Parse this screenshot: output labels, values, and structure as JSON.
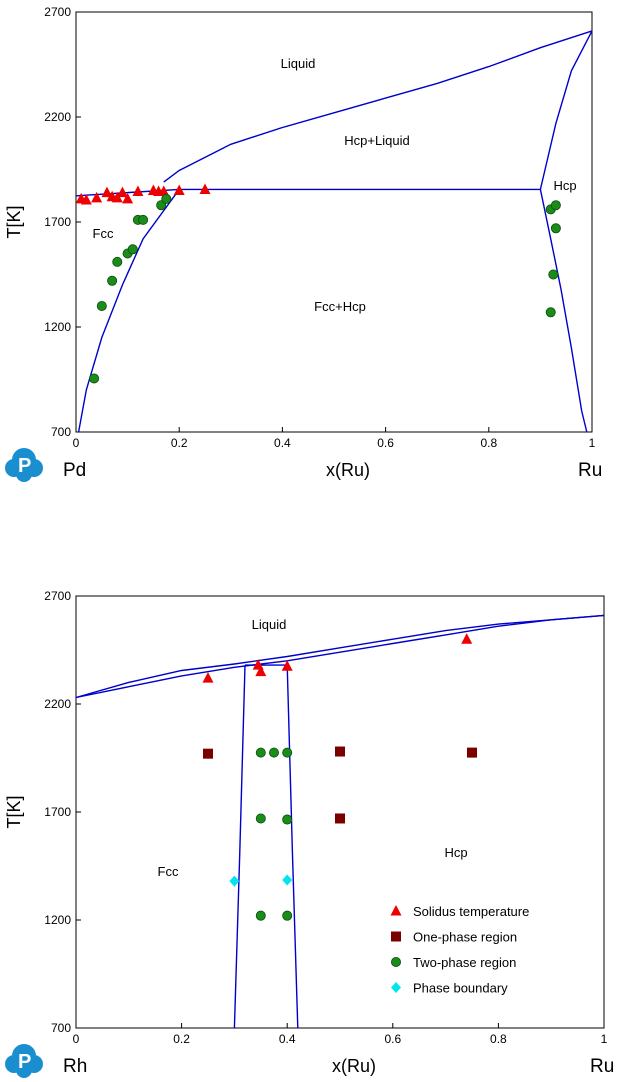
{
  "chart_data": [
    {
      "type": "scatter",
      "title": "",
      "xlabel": "x(Ru)",
      "ylabel": "T[K]",
      "xlim": [
        0,
        1
      ],
      "ylim": [
        700,
        2700
      ],
      "xticks": [
        "0",
        "0.2",
        "0.4",
        "0.6",
        "0.8",
        "1"
      ],
      "yticks": [
        "700",
        "1200",
        "1700",
        "2200",
        "2700"
      ],
      "left_element": "Pd",
      "right_element": "Ru",
      "region_labels": [
        "Liquid",
        "Hcp+Liquid",
        "Hcp",
        "Fcc",
        "Fcc+Hcp"
      ],
      "curves": [
        {
          "name": "liquidus",
          "color": "#0000cc",
          "points": [
            [
              0.17,
              1890
            ],
            [
              0.2,
              1945
            ],
            [
              0.3,
              2070
            ],
            [
              0.4,
              2150
            ],
            [
              0.5,
              2220
            ],
            [
              0.6,
              2290
            ],
            [
              0.7,
              2360
            ],
            [
              0.8,
              2440
            ],
            [
              0.9,
              2530
            ],
            [
              1.0,
              2610
            ]
          ]
        },
        {
          "name": "peritectic",
          "color": "#0000cc",
          "points": [
            [
              0,
              1825
            ],
            [
              0.2,
              1855
            ],
            [
              0.9,
              1855
            ]
          ]
        },
        {
          "name": "fcc-solvus",
          "color": "#0000cc",
          "points": [
            [
              0.005,
              700
            ],
            [
              0.02,
              900
            ],
            [
              0.05,
              1150
            ],
            [
              0.09,
              1400
            ],
            [
              0.13,
              1620
            ],
            [
              0.2,
              1855
            ]
          ]
        },
        {
          "name": "hcp-solidus",
          "color": "#0000cc",
          "points": [
            [
              0.9,
              1855
            ],
            [
              0.93,
              2170
            ],
            [
              0.96,
              2420
            ],
            [
              1.0,
              2610
            ]
          ]
        },
        {
          "name": "hcp-solvus",
          "color": "#0000cc",
          "points": [
            [
              0.9,
              1855
            ],
            [
              0.92,
              1620
            ],
            [
              0.94,
              1380
            ],
            [
              0.96,
              1100
            ],
            [
              0.98,
              800
            ],
            [
              0.99,
              700
            ]
          ]
        }
      ],
      "series": [
        {
          "name": "",
          "marker": "triangle",
          "color": "#ee0000",
          "x": [
            0.01,
            0.02,
            0.04,
            0.06,
            0.07,
            0.08,
            0.09,
            0.1,
            0.12,
            0.15,
            0.16,
            0.17,
            0.2,
            0.25
          ],
          "y": [
            1810,
            1805,
            1815,
            1840,
            1820,
            1815,
            1840,
            1810,
            1845,
            1850,
            1845,
            1845,
            1850,
            1855
          ]
        },
        {
          "name": "",
          "marker": "circle",
          "color": "#1a8c1a",
          "x": [
            0.035,
            0.05,
            0.07,
            0.08,
            0.1,
            0.11,
            0.12,
            0.13,
            0.165,
            0.175,
            0.92,
            0.93,
            0.925,
            0.93,
            0.92
          ],
          "y": [
            955,
            1300,
            1420,
            1510,
            1550,
            1570,
            1710,
            1710,
            1780,
            1810,
            1760,
            1670,
            1450,
            1780,
            1270
          ]
        }
      ]
    },
    {
      "type": "scatter",
      "title": "",
      "xlabel": "x(Ru)",
      "ylabel": "T[K]",
      "xlim": [
        0,
        1
      ],
      "ylim": [
        700,
        2700
      ],
      "xticks": [
        "0",
        "0.2",
        "0.4",
        "0.6",
        "0.8",
        "1"
      ],
      "yticks": [
        "700",
        "1200",
        "1700",
        "2200",
        "2700"
      ],
      "left_element": "Rh",
      "right_element": "Ru",
      "region_labels": [
        "Liquid",
        "Fcc",
        "Hcp"
      ],
      "curves": [
        {
          "name": "liquidus",
          "color": "#0000cc",
          "points": [
            [
              0,
              2230
            ],
            [
              0.1,
              2300
            ],
            [
              0.2,
              2355
            ],
            [
              0.3,
              2385
            ],
            [
              0.4,
              2420
            ],
            [
              0.5,
              2460
            ],
            [
              0.6,
              2500
            ],
            [
              0.7,
              2540
            ],
            [
              0.8,
              2570
            ],
            [
              0.9,
              2590
            ],
            [
              1.0,
              2610
            ]
          ]
        },
        {
          "name": "solidus",
          "color": "#0000cc",
          "points": [
            [
              0,
              2230
            ],
            [
              0.1,
              2280
            ],
            [
              0.2,
              2330
            ],
            [
              0.3,
              2370
            ],
            [
              0.4,
              2400
            ],
            [
              0.5,
              2440
            ],
            [
              0.6,
              2480
            ],
            [
              0.7,
              2520
            ],
            [
              0.8,
              2560
            ],
            [
              0.9,
              2590
            ],
            [
              1.0,
              2610
            ]
          ]
        },
        {
          "name": "peritectic",
          "color": "#0000cc",
          "points": [
            [
              0.32,
              2380
            ],
            [
              0.4,
              2380
            ]
          ]
        },
        {
          "name": "fcc-boundary",
          "color": "#0000cc",
          "points": [
            [
              0.32,
              2380
            ],
            [
              0.31,
              1500
            ],
            [
              0.3,
              700
            ]
          ]
        },
        {
          "name": "hcp-boundary",
          "color": "#0000cc",
          "points": [
            [
              0.4,
              2380
            ],
            [
              0.41,
              1500
            ],
            [
              0.42,
              700
            ]
          ]
        }
      ],
      "legend": {
        "position": "bottom-right",
        "entries": [
          {
            "label": "Solidus temperature",
            "marker": "triangle",
            "color": "#ee0000"
          },
          {
            "label": "One-phase region",
            "marker": "square",
            "color": "#7a0000"
          },
          {
            "label": "Two-phase region",
            "marker": "circle",
            "color": "#1a8c1a"
          },
          {
            "label": "Phase boundary",
            "marker": "diamond",
            "color": "#00e5ee"
          }
        ]
      },
      "series": [
        {
          "name": "Solidus temperature",
          "marker": "triangle",
          "color": "#ee0000",
          "x": [
            0.25,
            0.345,
            0.35,
            0.4,
            0.74
          ],
          "y": [
            2320,
            2380,
            2350,
            2375,
            2500
          ]
        },
        {
          "name": "One-phase region",
          "marker": "square",
          "color": "#7a0000",
          "x": [
            0.25,
            0.5,
            0.75,
            0.5
          ],
          "y": [
            1970,
            1980,
            1975,
            1670
          ]
        },
        {
          "name": "Two-phase region",
          "marker": "circle",
          "color": "#1a8c1a",
          "x": [
            0.35,
            0.375,
            0.4,
            0.35,
            0.4,
            0.35,
            0.4
          ],
          "y": [
            1975,
            1975,
            1975,
            1670,
            1665,
            1220,
            1220
          ]
        },
        {
          "name": "Phase boundary",
          "marker": "diamond",
          "color": "#00e5ee",
          "x": [
            0.3,
            0.4
          ],
          "y": [
            1380,
            1385
          ]
        }
      ]
    }
  ],
  "logo": {
    "name": "logo-icon",
    "color": "#1a8fd0"
  }
}
